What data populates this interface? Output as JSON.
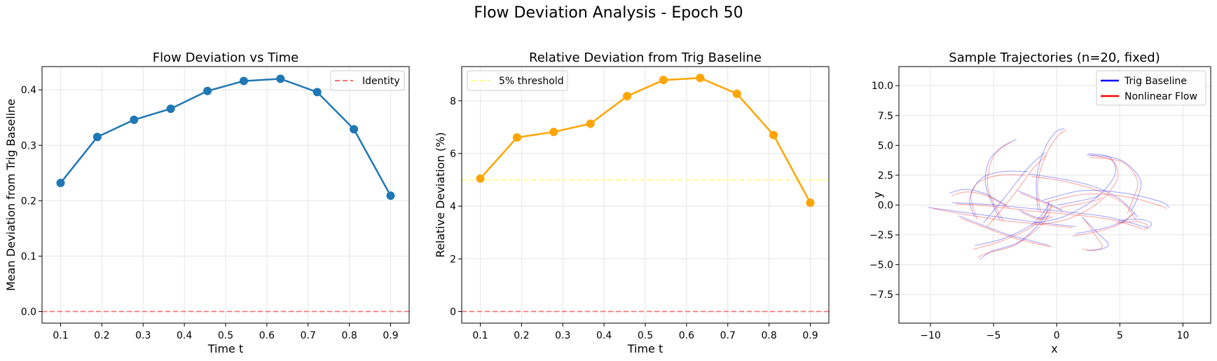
{
  "suptitle": "Flow Deviation Analysis - Epoch 50",
  "chart_data": [
    {
      "type": "line",
      "title": "Flow Deviation vs Time",
      "xlabel": "Time t",
      "ylabel": "Mean Deviation from Trig Baseline",
      "xlim": [
        0.055,
        0.945
      ],
      "ylim": [
        -0.021,
        0.442
      ],
      "xticks": [
        "0.1",
        "0.2",
        "0.3",
        "0.4",
        "0.5",
        "0.6",
        "0.7",
        "0.8",
        "0.9"
      ],
      "yticks": [
        "0.0",
        "0.1",
        "0.2",
        "0.3",
        "0.4"
      ],
      "grid": true,
      "legend_position": "upper-right",
      "series": [
        {
          "color": "#1f77b4",
          "marker": "circle",
          "x": [
            0.1,
            0.189,
            0.278,
            0.367,
            0.456,
            0.544,
            0.633,
            0.722,
            0.811,
            0.9
          ],
          "y": [
            0.232,
            0.315,
            0.346,
            0.366,
            0.398,
            0.416,
            0.42,
            0.396,
            0.329,
            0.209
          ]
        }
      ],
      "reference_lines": [
        {
          "name": "Identity",
          "y": 0.0,
          "color": "#ff6f6f",
          "style": "dashed",
          "in_legend": true
        }
      ]
    },
    {
      "type": "line",
      "title": "Relative Deviation from Trig Baseline",
      "xlabel": "Time t",
      "ylabel": "Relative Deviation (%)",
      "xlim": [
        0.055,
        0.945
      ],
      "ylim": [
        -0.44,
        9.3
      ],
      "xticks": [
        "0.1",
        "0.2",
        "0.3",
        "0.4",
        "0.5",
        "0.6",
        "0.7",
        "0.8",
        "0.9"
      ],
      "yticks": [
        "0",
        "2",
        "4",
        "6",
        "8"
      ],
      "grid": true,
      "legend_position": "upper-left",
      "series": [
        {
          "color": "#ffa500",
          "marker": "circle",
          "x": [
            0.1,
            0.189,
            0.278,
            0.367,
            0.456,
            0.544,
            0.633,
            0.722,
            0.811,
            0.9
          ],
          "y": [
            5.05,
            6.61,
            6.82,
            7.13,
            8.18,
            8.79,
            8.87,
            8.27,
            6.7,
            4.13
          ]
        }
      ],
      "reference_lines": [
        {
          "name": "5% threshold",
          "y": 5.0,
          "color": "#ffff80",
          "style": "dashed",
          "in_legend": true
        },
        {
          "name": "",
          "y": 0.0,
          "color": "#ff6f6f",
          "style": "dashed",
          "in_legend": false
        }
      ]
    },
    {
      "type": "line",
      "title": "Sample Trajectories (n=20, fixed)",
      "xlabel": "x",
      "ylabel": "y",
      "xlim": [
        -12.5,
        12.2
      ],
      "ylim": [
        -9.9,
        11.6
      ],
      "xticks": [
        "−10",
        "−5",
        "0",
        "5",
        "10"
      ],
      "yticks": [
        "−7.5",
        "−5.0",
        "−2.5",
        "0.0",
        "2.5",
        "5.0",
        "7.5",
        "10.0"
      ],
      "grid": true,
      "legend_position": "upper-right",
      "legend": [
        {
          "name": "Trig Baseline",
          "color": "#0000ff"
        },
        {
          "name": "Nonlinear Flow",
          "color": "#ff0000"
        }
      ],
      "trajectories": {
        "trig_color": "#0000ff",
        "flow_color": "#ff0000",
        "pairs": [
          {
            "trig": [
              [
                -10.2,
                -0.2
              ],
              [
                -7.5,
                -0.6
              ],
              [
                -4.0,
                -1.1
              ],
              [
                -1.2,
                -1.5
              ],
              [
                1.5,
                -1.8
              ]
            ],
            "flow": [
              [
                -9.8,
                -0.3
              ],
              [
                -7.2,
                -0.8
              ],
              [
                -4.2,
                -1.3
              ],
              [
                -1.4,
                -1.6
              ],
              [
                1.2,
                -1.9
              ]
            ]
          },
          {
            "trig": [
              [
                -8.3,
                0.2
              ],
              [
                -5.5,
                0.05
              ],
              [
                -2.0,
                -0.3
              ],
              [
                1.0,
                -0.6
              ],
              [
                4.0,
                -1.0
              ],
              [
                7.2,
                -1.9
              ]
            ],
            "flow": [
              [
                -8.0,
                0.1
              ],
              [
                -5.2,
                -0.1
              ],
              [
                -2.0,
                -0.5
              ],
              [
                1.2,
                -0.8
              ],
              [
                4.2,
                -1.2
              ],
              [
                6.8,
                -2.0
              ]
            ]
          },
          {
            "trig": [
              [
                -6.5,
                -1.0
              ],
              [
                -6.9,
                0.5
              ],
              [
                -6.0,
                2.2
              ],
              [
                -4.3,
                2.8
              ],
              [
                -2.3,
                2.8
              ]
            ],
            "flow": [
              [
                -6.3,
                -1.2
              ],
              [
                -6.8,
                0.7
              ],
              [
                -6.2,
                1.9
              ],
              [
                -4.5,
                2.5
              ],
              [
                -2.5,
                2.5
              ]
            ]
          },
          {
            "trig": [
              [
                -4.5,
                -1.2
              ],
              [
                -5.6,
                1.5
              ],
              [
                -5.4,
                3.6
              ],
              [
                -4.4,
                4.8
              ],
              [
                -3.2,
                5.5
              ]
            ],
            "flow": [
              [
                -4.2,
                -1.4
              ],
              [
                -5.4,
                1.2
              ],
              [
                -5.3,
                3.3
              ],
              [
                -4.6,
                4.6
              ],
              [
                -3.6,
                5.3
              ]
            ]
          },
          {
            "trig": [
              [
                -5.8,
                -1.5
              ],
              [
                -4.0,
                0.8
              ],
              [
                -2.2,
                3.2
              ],
              [
                -0.9,
                4.4
              ]
            ],
            "flow": [
              [
                -5.5,
                -1.8
              ],
              [
                -3.6,
                0.6
              ],
              [
                -1.9,
                3.0
              ],
              [
                -0.8,
                4.2
              ]
            ]
          },
          {
            "trig": [
              [
                -1.5,
                -0.4
              ],
              [
                -1.6,
                2.2
              ],
              [
                -1.0,
                4.6
              ],
              [
                -0.1,
                6.1
              ],
              [
                0.6,
                6.4
              ]
            ],
            "flow": [
              [
                -1.3,
                -0.6
              ],
              [
                -1.5,
                1.9
              ],
              [
                -0.8,
                4.3
              ],
              [
                0.1,
                5.8
              ],
              [
                0.8,
                6.3
              ]
            ]
          },
          {
            "trig": [
              [
                -1.8,
                -1.5
              ],
              [
                0.5,
                -1.0
              ],
              [
                3.0,
                0.5
              ],
              [
                4.6,
                2.5
              ],
              [
                4.2,
                4.0
              ],
              [
                2.5,
                4.3
              ]
            ],
            "flow": [
              [
                -2.0,
                -1.7
              ],
              [
                0.8,
                -1.2
              ],
              [
                3.3,
                0.2
              ],
              [
                4.8,
                2.2
              ],
              [
                4.4,
                3.7
              ],
              [
                2.7,
                4.2
              ]
            ]
          },
          {
            "trig": [
              [
                -1.1,
                0.4
              ],
              [
                2.0,
                1.2
              ],
              [
                5.3,
                1.0
              ],
              [
                8.2,
                0.3
              ],
              [
                8.9,
                -0.2
              ]
            ],
            "flow": [
              [
                -0.9,
                0.2
              ],
              [
                2.2,
                0.9
              ],
              [
                5.5,
                0.7
              ],
              [
                8.0,
                0.0
              ],
              [
                8.7,
                -0.3
              ]
            ]
          },
          {
            "trig": [
              [
                -2.2,
                2.6
              ],
              [
                0.3,
                2.2
              ],
              [
                2.8,
                1.6
              ],
              [
                5.0,
                0.5
              ],
              [
                6.4,
                -1.0
              ]
            ],
            "flow": [
              [
                -2.0,
                2.4
              ],
              [
                0.5,
                2.0
              ],
              [
                3.0,
                1.3
              ],
              [
                5.2,
                0.2
              ],
              [
                6.3,
                -1.3
              ]
            ]
          },
          {
            "trig": [
              [
                -0.6,
                0.3
              ],
              [
                -1.1,
                -1.2
              ],
              [
                -3.0,
                -3.1
              ],
              [
                -5.2,
                -3.9
              ],
              [
                -6.1,
                -4.6
              ]
            ],
            "flow": [
              [
                -0.4,
                0.1
              ],
              [
                -1.0,
                -1.4
              ],
              [
                -3.2,
                -3.3
              ],
              [
                -5.4,
                -4.0
              ],
              [
                -6.3,
                -4.4
              ]
            ]
          },
          {
            "trig": [
              [
                -0.6,
                0.1
              ],
              [
                -1.8,
                -1.5
              ],
              [
                -4.2,
                -2.8
              ],
              [
                -6.5,
                -3.4
              ]
            ],
            "flow": [
              [
                -0.4,
                -0.1
              ],
              [
                -1.8,
                -1.7
              ],
              [
                -4.3,
                -3.0
              ],
              [
                -6.6,
                -3.7
              ]
            ]
          },
          {
            "trig": [
              [
                -7.8,
                -0.9
              ],
              [
                -5.6,
                -1.8
              ],
              [
                -3.8,
                -2.5
              ],
              [
                -2.0,
                -3.0
              ],
              [
                -0.6,
                -3.4
              ]
            ],
            "flow": [
              [
                -7.6,
                -1.1
              ],
              [
                -5.4,
                -2.0
              ],
              [
                -3.6,
                -2.7
              ],
              [
                -1.8,
                -3.2
              ],
              [
                -0.4,
                -3.5
              ]
            ]
          },
          {
            "trig": [
              [
                2.0,
                -1.0
              ],
              [
                3.3,
                -2.4
              ],
              [
                4.1,
                -3.3
              ],
              [
                3.5,
                -3.7
              ],
              [
                2.4,
                -3.8
              ]
            ],
            "flow": [
              [
                2.2,
                -1.2
              ],
              [
                3.1,
                -2.6
              ],
              [
                3.6,
                -3.5
              ],
              [
                2.9,
                -3.8
              ],
              [
                2.0,
                -3.7
              ]
            ]
          },
          {
            "trig": [
              [
                4.9,
                -1.3
              ],
              [
                6.5,
                -1.2
              ],
              [
                7.5,
                -1.5
              ],
              [
                7.2,
                -2.0
              ]
            ],
            "flow": [
              [
                4.7,
                -1.5
              ],
              [
                6.3,
                -1.4
              ],
              [
                7.2,
                -1.7
              ],
              [
                6.9,
                -2.1
              ]
            ]
          },
          {
            "trig": [
              [
                2.4,
                4.2
              ],
              [
                5.0,
                3.8
              ],
              [
                6.6,
                2.2
              ],
              [
                6.4,
                0.6
              ],
              [
                5.9,
                -0.5
              ]
            ],
            "flow": [
              [
                2.6,
                4.0
              ],
              [
                5.2,
                3.6
              ],
              [
                6.4,
                2.0
              ],
              [
                6.0,
                0.4
              ],
              [
                5.6,
                -0.7
              ]
            ]
          },
          {
            "trig": [
              [
                0.1,
                0.0
              ],
              [
                1.6,
                0.3
              ],
              [
                2.9,
                0.6
              ],
              [
                3.4,
                0.8
              ]
            ],
            "flow": [
              [
                0.3,
                -0.2
              ],
              [
                1.8,
                0.1
              ],
              [
                3.1,
                0.4
              ],
              [
                3.6,
                0.6
              ]
            ]
          },
          {
            "trig": [
              [
                -8.5,
                1.0
              ],
              [
                -7.3,
                1.3
              ],
              [
                -5.8,
                1.0
              ],
              [
                -4.7,
                0.4
              ],
              [
                -4.0,
                0.0
              ]
            ],
            "flow": [
              [
                -8.3,
                0.8
              ],
              [
                -7.1,
                1.1
              ],
              [
                -5.6,
                0.8
              ],
              [
                -4.5,
                0.2
              ],
              [
                -3.8,
                -0.2
              ]
            ]
          },
          {
            "trig": [
              [
                -3.1,
                1.2
              ],
              [
                -1.7,
                0.6
              ],
              [
                -0.4,
                0.0
              ],
              [
                0.4,
                -0.4
              ]
            ],
            "flow": [
              [
                -2.9,
                1.0
              ],
              [
                -1.5,
                0.4
              ],
              [
                -0.2,
                -0.2
              ],
              [
                0.5,
                -0.5
              ]
            ]
          },
          {
            "trig": [
              [
                -3.0,
                -0.4
              ],
              [
                -2.2,
                -0.8
              ],
              [
                -1.3,
                -1.1
              ],
              [
                -0.5,
                -0.9
              ]
            ],
            "flow": [
              [
                -2.8,
                -0.6
              ],
              [
                -2.0,
                -1.0
              ],
              [
                -1.1,
                -1.2
              ],
              [
                -0.3,
                -1.0
              ]
            ]
          },
          {
            "trig": [
              [
                1.5,
                -2.4
              ],
              [
                3.5,
                -2.0
              ],
              [
                5.2,
                -1.4
              ],
              [
                6.2,
                -0.6
              ]
            ],
            "flow": [
              [
                1.3,
                -2.6
              ],
              [
                3.3,
                -2.2
              ],
              [
                5.0,
                -1.6
              ],
              [
                6.0,
                -0.8
              ]
            ]
          }
        ]
      }
    }
  ]
}
